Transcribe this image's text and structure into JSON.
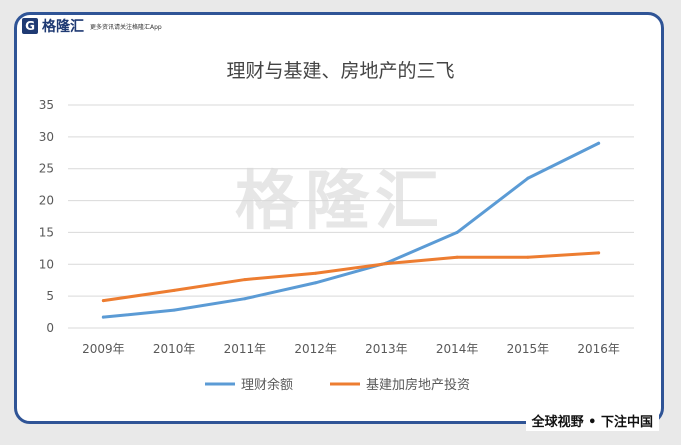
{
  "logo": {
    "mark": "G",
    "name": "格隆汇",
    "tagline": "更多资讯请关注格隆汇App"
  },
  "watermark": "格隆汇",
  "footer": "全球视野 • 下注中国",
  "colors": {
    "frame": "#2f5496",
    "series1": "#5b9bd5",
    "series2": "#ed7d31"
  },
  "chart_data": {
    "type": "line",
    "title": "理财与基建、房地产的三飞",
    "categories": [
      "2009年",
      "2010年",
      "2011年",
      "2012年",
      "2013年",
      "2014年",
      "2015年",
      "2016年"
    ],
    "ylim": [
      0,
      35
    ],
    "yticks": [
      0,
      5,
      10,
      15,
      20,
      25,
      30,
      35
    ],
    "grid": true,
    "legend": "bottom",
    "series": [
      {
        "name": "理财余额",
        "color": "#5b9bd5",
        "values": [
          1.7,
          2.8,
          4.6,
          7.1,
          10.2,
          15.0,
          23.5,
          29.0
        ]
      },
      {
        "name": "基建加房地产投资",
        "color": "#ed7d31",
        "values": [
          4.3,
          5.9,
          7.6,
          8.6,
          10.1,
          11.1,
          11.1,
          11.8
        ]
      }
    ]
  }
}
